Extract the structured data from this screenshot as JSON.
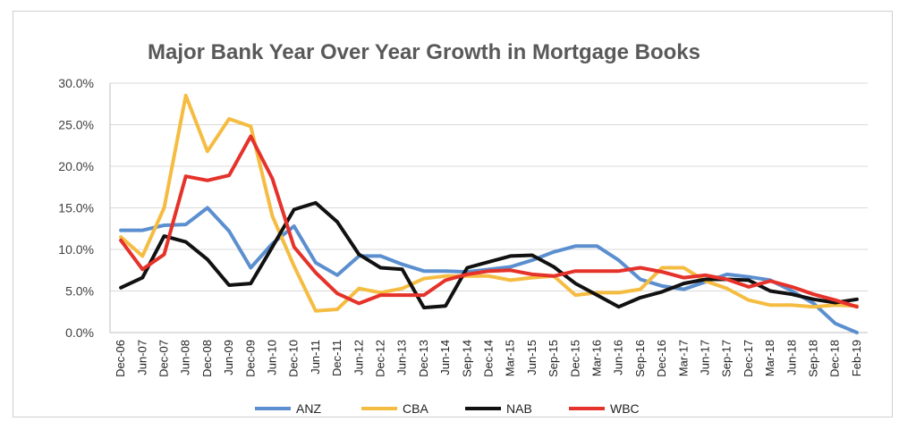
{
  "chart_data": {
    "type": "line",
    "title": "Major Bank Year Over Year Growth in Mortgage Books",
    "xlabel": "",
    "ylabel": "",
    "ylim": [
      0,
      30
    ],
    "yticks": [
      "0.0%",
      "5.0%",
      "10.0%",
      "15.0%",
      "20.0%",
      "25.0%",
      "30.0%"
    ],
    "grid": "horizontal",
    "legend_position": "bottom",
    "x_tick_labels": [
      "Dec-06",
      "Jun-07",
      "Dec-07",
      "Jun-08",
      "Dec-08",
      "Jun-09",
      "Dec-09",
      "Jun-10",
      "Dec-10",
      "Jun-11",
      "Dec-11",
      "Jun-12",
      "Dec-12",
      "Jun-13",
      "Dec-13",
      "Jun-14",
      "Sep-14",
      "Dec-14",
      "Mar-15",
      "Jun-15",
      "Sep-15",
      "Dec-15",
      "Mar-16",
      "Jun-16",
      "Sep-16",
      "Dec-16",
      "Mar-17",
      "Jun-17",
      "Sep-17",
      "Dec-17",
      "Mar-18",
      "Jun-18",
      "Sep-18",
      "Dec-18",
      "Feb-19"
    ],
    "series": [
      {
        "name": "ANZ",
        "color": "#5b8fcf",
        "values": [
          12.3,
          12.3,
          12.9,
          13.0,
          15.0,
          12.2,
          7.8,
          10.7,
          12.8,
          8.4,
          6.9,
          9.2,
          9.2,
          8.2,
          7.4,
          7.4,
          7.3,
          7.6,
          7.9,
          8.7,
          9.7,
          10.4,
          10.4,
          8.7,
          6.4,
          5.6,
          5.2,
          6.1,
          7.0,
          6.7,
          6.3,
          5.0,
          3.5,
          1.1,
          0.0
        ]
      },
      {
        "name": "CBA",
        "color": "#f5bc42",
        "values": [
          11.5,
          9.2,
          15.0,
          28.5,
          21.8,
          25.7,
          24.8,
          14.0,
          8.0,
          2.6,
          2.8,
          5.3,
          4.8,
          5.3,
          6.5,
          6.8,
          6.8,
          6.8,
          6.3,
          6.6,
          6.8,
          4.5,
          4.8,
          4.8,
          5.2,
          7.8,
          7.8,
          6.2,
          5.3,
          3.9,
          3.3,
          3.3,
          3.1,
          3.3,
          3.2
        ]
      },
      {
        "name": "NAB",
        "color": "#111111",
        "values": [
          5.4,
          6.6,
          11.6,
          10.9,
          8.8,
          5.7,
          5.9,
          10.3,
          14.8,
          15.6,
          13.3,
          9.4,
          7.8,
          7.6,
          3.0,
          3.2,
          7.8,
          8.5,
          9.2,
          9.3,
          7.9,
          5.9,
          4.5,
          3.1,
          4.2,
          4.9,
          5.9,
          6.4,
          6.4,
          6.3,
          5.0,
          4.6,
          4.0,
          3.6,
          4.0
        ]
      },
      {
        "name": "WBC",
        "color": "#e5322a",
        "values": [
          11.1,
          7.6,
          9.4,
          18.8,
          18.3,
          18.9,
          23.6,
          18.5,
          10.3,
          7.2,
          4.7,
          3.5,
          4.5,
          4.5,
          4.5,
          6.3,
          7.0,
          7.4,
          7.5,
          7.0,
          6.8,
          7.4,
          7.4,
          7.4,
          7.8,
          7.3,
          6.6,
          6.9,
          6.4,
          5.5,
          6.2,
          5.5,
          4.6,
          3.9,
          3.1
        ]
      }
    ]
  }
}
